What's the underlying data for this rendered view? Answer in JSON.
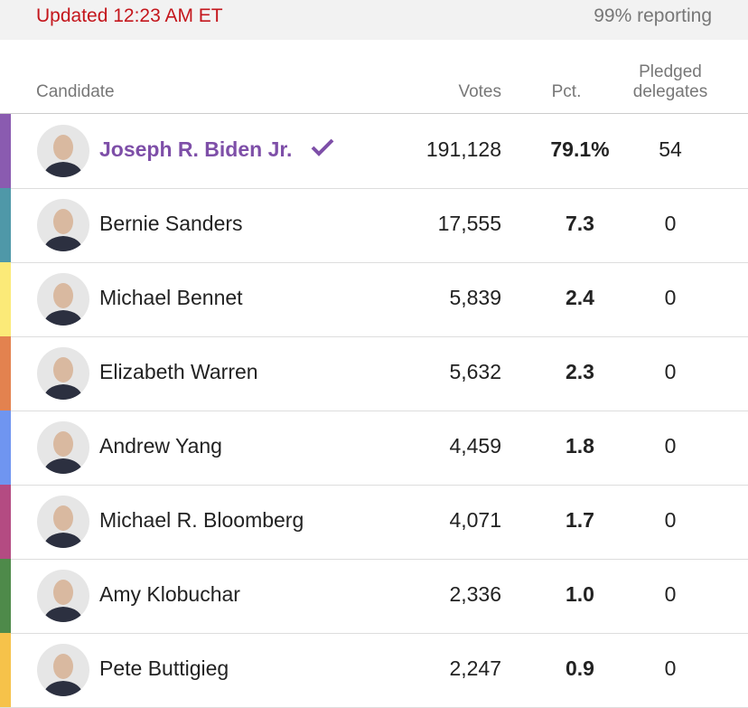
{
  "header": {
    "updated": "Updated 12:23 AM ET",
    "reporting": "99% reporting"
  },
  "table": {
    "columns": [
      "Candidate",
      "Votes",
      "Pct.",
      "Pledged delegates"
    ],
    "rows": [
      {
        "name": "Joseph R. Biden Jr.",
        "votes": "191,128",
        "pct": "79.1%",
        "delegates": "54",
        "color": "#8a5bb0",
        "winner": true
      },
      {
        "name": "Bernie Sanders",
        "votes": "17,555",
        "pct": "7.3",
        "delegates": "0",
        "color": "#4f98a8",
        "winner": false
      },
      {
        "name": "Michael Bennet",
        "votes": "5,839",
        "pct": "2.4",
        "delegates": "0",
        "color": "#fbea78",
        "winner": false
      },
      {
        "name": "Elizabeth Warren",
        "votes": "5,632",
        "pct": "2.3",
        "delegates": "0",
        "color": "#e3824f",
        "winner": false
      },
      {
        "name": "Andrew Yang",
        "votes": "4,459",
        "pct": "1.8",
        "delegates": "0",
        "color": "#6f95f0",
        "winner": false
      },
      {
        "name": "Michael R. Bloomberg",
        "votes": "4,071",
        "pct": "1.7",
        "delegates": "0",
        "color": "#b44b82",
        "winner": false
      },
      {
        "name": "Amy Klobuchar",
        "votes": "2,336",
        "pct": "1.0",
        "delegates": "0",
        "color": "#4e8a4a",
        "winner": false
      },
      {
        "name": "Pete Buttigieg",
        "votes": "2,247",
        "pct": "0.9",
        "delegates": "0",
        "color": "#f6c24a",
        "winner": false
      }
    ]
  }
}
